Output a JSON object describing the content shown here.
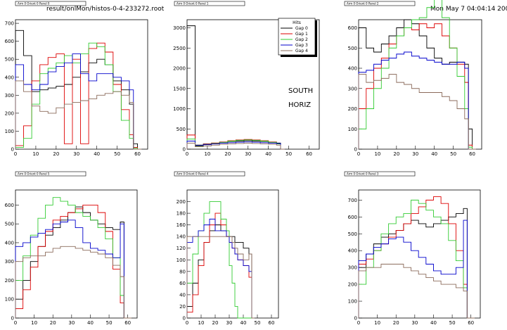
{
  "header": {
    "file_path": "result/onlMon/histos-0-4-233272.root",
    "timestamp": "Mon May  7 04:04:14 2007"
  },
  "legend": {
    "title": "Hits",
    "entries": [
      "Gap 0",
      "Gap 1",
      "Gap 2",
      "Gap 3",
      "Gap 4"
    ]
  },
  "side_labels": [
    "SOUTH",
    "HORIZ"
  ],
  "colors": {
    "Gap 0": "#000000",
    "Gap 1": "#dd0000",
    "Gap 2": "#33cc33",
    "Gap 3": "#0000cc",
    "Gap 4": "#8b6b5b"
  },
  "chart_data": [
    {
      "type": "line",
      "title": "Arm 0 Orient 0 Panel 0",
      "x": [
        0,
        4,
        8,
        12,
        16,
        20,
        24,
        28,
        32,
        36,
        40,
        44,
        48,
        52,
        56,
        58,
        60
      ],
      "xlim": [
        0,
        65
      ],
      "ylim": [
        0,
        720
      ],
      "xticks": [
        0,
        10,
        20,
        30,
        40,
        50,
        60
      ],
      "yticks": [
        0,
        100,
        200,
        300,
        400,
        500,
        600,
        700
      ],
      "series": [
        {
          "name": "Gap 0",
          "values": [
            660,
            520,
            320,
            330,
            340,
            350,
            360,
            400,
            430,
            480,
            500,
            470,
            380,
            330,
            250,
            30,
            0
          ]
        },
        {
          "name": "Gap 1",
          "values": [
            20,
            130,
            380,
            470,
            510,
            530,
            30,
            500,
            30,
            560,
            590,
            540,
            360,
            220,
            80,
            10,
            0
          ]
        },
        {
          "name": "Gap 2",
          "values": [
            10,
            60,
            250,
            420,
            450,
            480,
            520,
            480,
            530,
            590,
            570,
            470,
            320,
            160,
            60,
            5,
            0
          ]
        },
        {
          "name": "Gap 3",
          "values": [
            470,
            360,
            330,
            360,
            430,
            460,
            480,
            530,
            420,
            380,
            420,
            420,
            400,
            380,
            330,
            0,
            0
          ]
        },
        {
          "name": "Gap 4",
          "values": [
            380,
            320,
            240,
            210,
            200,
            230,
            250,
            260,
            270,
            280,
            300,
            310,
            320,
            300,
            260,
            0,
            0
          ]
        }
      ]
    },
    {
      "type": "line",
      "title": "Arm 0 Orient 0 Panel 1",
      "x": [
        0,
        4,
        8,
        12,
        16,
        20,
        24,
        28,
        32,
        36,
        40,
        44,
        46
      ],
      "xlim": [
        0,
        65
      ],
      "ylim": [
        0,
        3200
      ],
      "xticks": [
        0,
        10,
        20,
        30,
        40,
        50,
        60
      ],
      "yticks": [
        0,
        500,
        1000,
        1500,
        2000,
        2500,
        3000
      ],
      "series": [
        {
          "name": "Gap 0",
          "values": [
            3050,
            100,
            130,
            150,
            170,
            190,
            200,
            210,
            200,
            190,
            170,
            150,
            0
          ]
        },
        {
          "name": "Gap 1",
          "values": [
            350,
            80,
            120,
            150,
            180,
            210,
            230,
            240,
            230,
            210,
            180,
            140,
            0
          ]
        },
        {
          "name": "Gap 2",
          "values": [
            250,
            70,
            110,
            140,
            170,
            200,
            220,
            230,
            220,
            200,
            170,
            130,
            0
          ]
        },
        {
          "name": "Gap 3",
          "values": [
            200,
            90,
            110,
            130,
            150,
            160,
            170,
            180,
            170,
            160,
            150,
            140,
            0
          ]
        },
        {
          "name": "Gap 4",
          "values": [
            150,
            60,
            80,
            100,
            120,
            130,
            140,
            150,
            140,
            130,
            120,
            100,
            0
          ]
        }
      ]
    },
    {
      "type": "line",
      "title": "Arm 0 Orient 0 Panel 2",
      "x": [
        0,
        4,
        8,
        12,
        16,
        20,
        24,
        28,
        32,
        36,
        40,
        44,
        48,
        52,
        56,
        58,
        60
      ],
      "xlim": [
        0,
        65
      ],
      "ylim": [
        0,
        640
      ],
      "xticks": [
        0,
        10,
        20,
        30,
        40,
        50,
        60
      ],
      "yticks": [
        0,
        100,
        200,
        300,
        400,
        500,
        600
      ],
      "series": [
        {
          "name": "Gap 0",
          "values": [
            600,
            500,
            480,
            520,
            560,
            600,
            640,
            620,
            560,
            500,
            450,
            420,
            430,
            430,
            420,
            100,
            0
          ]
        },
        {
          "name": "Gap 1",
          "values": [
            200,
            300,
            400,
            450,
            520,
            560,
            600,
            590,
            620,
            600,
            620,
            560,
            500,
            420,
            330,
            20,
            0
          ]
        },
        {
          "name": "Gap 2",
          "values": [
            100,
            200,
            300,
            400,
            500,
            560,
            600,
            640,
            650,
            700,
            740,
            650,
            500,
            360,
            200,
            10,
            0
          ]
        },
        {
          "name": "Gap 3",
          "values": [
            380,
            390,
            420,
            440,
            450,
            470,
            480,
            460,
            450,
            440,
            430,
            420,
            420,
            430,
            400,
            0,
            0
          ]
        },
        {
          "name": "Gap 4",
          "values": [
            370,
            330,
            340,
            350,
            370,
            330,
            320,
            300,
            280,
            280,
            280,
            260,
            240,
            200,
            150,
            0,
            0
          ]
        }
      ]
    },
    {
      "type": "line",
      "title": "Arm 0 Orient 0 Panel 5",
      "x": [
        0,
        4,
        8,
        12,
        16,
        20,
        24,
        28,
        32,
        36,
        40,
        44,
        48,
        52,
        56,
        58,
        60
      ],
      "xlim": [
        0,
        65
      ],
      "ylim": [
        0,
        680
      ],
      "xticks": [
        0,
        10,
        20,
        30,
        40,
        50,
        60
      ],
      "yticks": [
        0,
        100,
        200,
        300,
        400,
        500,
        600
      ],
      "series": [
        {
          "name": "Gap 0",
          "values": [
            100,
            200,
            300,
            380,
            440,
            480,
            520,
            560,
            590,
            560,
            520,
            500,
            480,
            470,
            510,
            0,
            0
          ]
        },
        {
          "name": "Gap 1",
          "values": [
            50,
            150,
            270,
            380,
            460,
            520,
            540,
            560,
            580,
            600,
            600,
            560,
            460,
            260,
            80,
            0,
            0
          ]
        },
        {
          "name": "Gap 2",
          "values": [
            200,
            330,
            440,
            530,
            600,
            640,
            620,
            600,
            560,
            540,
            520,
            480,
            420,
            320,
            120,
            0,
            0
          ]
        },
        {
          "name": "Gap 3",
          "values": [
            380,
            400,
            430,
            450,
            470,
            500,
            510,
            520,
            480,
            400,
            370,
            360,
            340,
            320,
            500,
            0,
            0
          ]
        },
        {
          "name": "Gap 4",
          "values": [
            300,
            320,
            330,
            330,
            350,
            370,
            380,
            380,
            370,
            360,
            350,
            340,
            320,
            280,
            220,
            0,
            0
          ]
        }
      ]
    },
    {
      "type": "line",
      "title": "Arm 0 Orient 0 Panel 4",
      "x": [
        0,
        4,
        8,
        12,
        16,
        20,
        24,
        28,
        30,
        32,
        34,
        36,
        40,
        44,
        46
      ],
      "xlim": [
        0,
        65
      ],
      "ylim": [
        0,
        220
      ],
      "xticks": [
        0,
        10,
        20,
        30,
        40,
        50,
        60
      ],
      "yticks": [
        0,
        20,
        40,
        60,
        80,
        100,
        120,
        140,
        160,
        180,
        200
      ],
      "series": [
        {
          "name": "Gap 0",
          "values": [
            20,
            60,
            100,
            130,
            150,
            160,
            150,
            140,
            140,
            140,
            130,
            130,
            120,
            110,
            0
          ]
        },
        {
          "name": "Gap 1",
          "values": [
            10,
            40,
            90,
            130,
            160,
            180,
            160,
            140,
            130,
            120,
            110,
            100,
            90,
            70,
            0
          ]
        },
        {
          "name": "Gap 2",
          "values": [
            60,
            110,
            150,
            180,
            200,
            200,
            170,
            150,
            90,
            60,
            20,
            0,
            0,
            0,
            0
          ]
        },
        {
          "name": "Gap 3",
          "values": [
            130,
            140,
            150,
            160,
            170,
            150,
            150,
            140,
            130,
            120,
            110,
            100,
            90,
            80,
            0
          ]
        },
        {
          "name": "Gap 4",
          "values": [
            140,
            140,
            140,
            140,
            140,
            140,
            140,
            140,
            140,
            130,
            120,
            110,
            100,
            110,
            0
          ]
        }
      ]
    },
    {
      "type": "line",
      "title": "Arm 0 Orient 0 Panel 3",
      "x": [
        0,
        4,
        8,
        12,
        16,
        20,
        24,
        28,
        32,
        36,
        40,
        44,
        48,
        52,
        56,
        58,
        60
      ],
      "xlim": [
        0,
        65
      ],
      "ylim": [
        0,
        760
      ],
      "xticks": [
        0,
        10,
        20,
        30,
        40,
        50,
        60
      ],
      "yticks": [
        0,
        100,
        200,
        300,
        400,
        500,
        600,
        700
      ],
      "series": [
        {
          "name": "Gap 0",
          "values": [
            300,
            380,
            440,
            480,
            500,
            520,
            560,
            580,
            560,
            540,
            560,
            580,
            600,
            620,
            650,
            0,
            0
          ]
        },
        {
          "name": "Gap 1",
          "values": [
            320,
            350,
            400,
            440,
            480,
            520,
            560,
            620,
            660,
            700,
            720,
            680,
            560,
            400,
            200,
            0,
            0
          ]
        },
        {
          "name": "Gap 2",
          "values": [
            200,
            300,
            400,
            500,
            560,
            600,
            620,
            700,
            680,
            640,
            600,
            560,
            460,
            340,
            180,
            0,
            0
          ]
        },
        {
          "name": "Gap 3",
          "values": [
            340,
            380,
            420,
            440,
            470,
            480,
            450,
            400,
            360,
            320,
            280,
            260,
            260,
            300,
            580,
            0,
            0
          ]
        },
        {
          "name": "Gap 4",
          "values": [
            280,
            300,
            300,
            320,
            320,
            320,
            300,
            280,
            260,
            240,
            220,
            200,
            200,
            180,
            160,
            0,
            0
          ]
        }
      ]
    }
  ]
}
